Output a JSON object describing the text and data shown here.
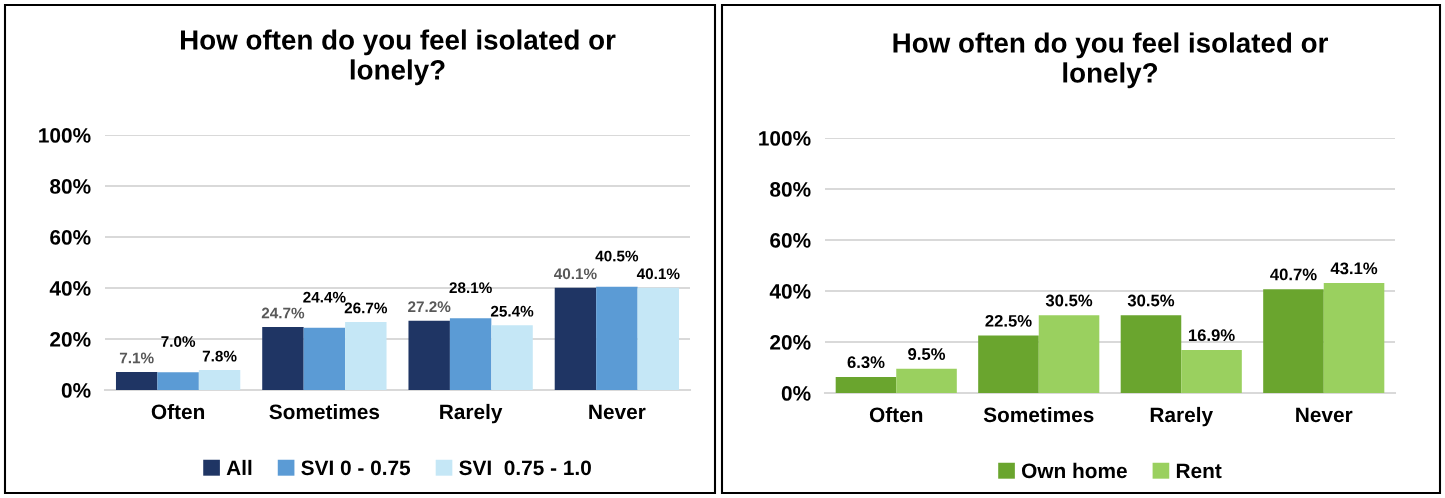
{
  "chart_data": [
    {
      "type": "bar",
      "title": "How often do you feel isolated or\nlonely?",
      "categories": [
        "Often",
        "Sometimes",
        "Rarely",
        "Never"
      ],
      "series": [
        {
          "name": "All",
          "color": "#1f3564",
          "values": [
            7.1,
            24.7,
            27.2,
            40.1
          ],
          "value_labels": [
            "7.1%",
            "24.7%",
            "27.2%",
            "40.1%"
          ]
        },
        {
          "name": "SVI 0 - 0.75",
          "color": "#5b9bd5",
          "values": [
            7.0,
            24.4,
            28.1,
            40.5
          ],
          "value_labels": [
            "7.0%",
            "24.4%",
            "28.1%",
            "40.5%"
          ]
        },
        {
          "name": "SVI  0.75 - 1.0",
          "color": "#c5e7f6",
          "values": [
            7.8,
            26.7,
            25.4,
            40.1
          ],
          "value_labels": [
            "7.8%",
            "26.7%",
            "25.4%",
            "40.1%"
          ]
        }
      ],
      "ylim": [
        0,
        100
      ],
      "yticks": [
        {
          "value": 0,
          "label": "0%"
        },
        {
          "value": 20,
          "label": "20%"
        },
        {
          "value": 40,
          "label": "40%"
        },
        {
          "value": 60,
          "label": "60%"
        },
        {
          "value": 80,
          "label": "80%"
        },
        {
          "value": 100,
          "label": "100%"
        }
      ],
      "grid": "y",
      "legend": "bottom"
    },
    {
      "type": "bar",
      "title": "How often do you feel isolated or\nlonely?",
      "categories": [
        "Often",
        "Sometimes",
        "Rarely",
        "Never"
      ],
      "series": [
        {
          "name": "Own home",
          "color": "#6aa52e",
          "values": [
            6.3,
            22.5,
            30.5,
            40.7
          ],
          "value_labels": [
            "6.3%",
            "22.5%",
            "30.5%",
            "40.7%"
          ]
        },
        {
          "name": "Rent",
          "color": "#9ad05f",
          "values": [
            9.5,
            30.5,
            16.9,
            43.1
          ],
          "value_labels": [
            "9.5%",
            "30.5%",
            "16.9%",
            "43.1%"
          ]
        }
      ],
      "ylim": [
        0,
        100
      ],
      "yticks": [
        {
          "value": 0,
          "label": "0%"
        },
        {
          "value": 20,
          "label": "20%"
        },
        {
          "value": 40,
          "label": "40%"
        },
        {
          "value": 60,
          "label": "60%"
        },
        {
          "value": 80,
          "label": "80%"
        },
        {
          "value": 100,
          "label": "100%"
        }
      ],
      "grid": "y",
      "legend": "bottom"
    }
  ]
}
